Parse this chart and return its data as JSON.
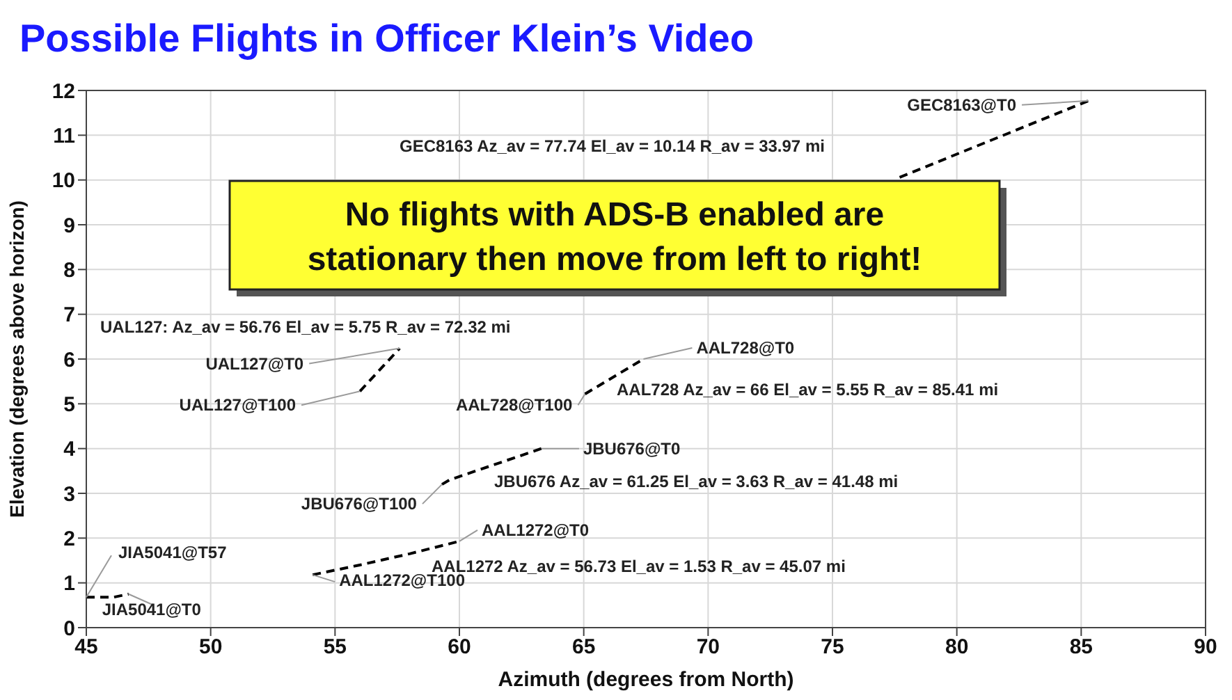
{
  "chart_data": {
    "type": "line",
    "title": "Possible Flights in Officer Klein’s Video",
    "xlabel": "Azimuth (degrees from North)",
    "ylabel": "Elevation (degrees above horizon)",
    "xlim": [
      45,
      90
    ],
    "xticks": [
      45,
      50,
      55,
      60,
      65,
      70,
      75,
      80,
      85,
      90
    ],
    "ylim": [
      0,
      12
    ],
    "yticks": [
      0,
      1,
      2,
      3,
      4,
      5,
      6,
      7,
      8,
      9,
      10,
      11,
      12
    ],
    "grid": true,
    "line_style": "dashed",
    "marker": "none",
    "series": [
      {
        "color": "#000000",
        "x": [
          45,
          46.1,
          46.7
        ],
        "values": [
          0.68,
          0.68,
          0.75
        ]
      },
      {
        "color": "#000000",
        "x": [
          54.1,
          56,
          58,
          60
        ],
        "values": [
          1.18,
          1.4,
          1.65,
          1.93
        ]
      },
      {
        "color": "#000000",
        "x": [
          59.3,
          59.6,
          63.3
        ],
        "values": [
          3.2,
          3.3,
          4.0
        ]
      },
      {
        "color": "#000000",
        "x": [
          65.05,
          67.4
        ],
        "values": [
          5.22,
          6.0
        ]
      },
      {
        "color": "#000000",
        "x": [
          56.0,
          57.6
        ],
        "values": [
          5.28,
          6.24
        ]
      },
      {
        "color": "#000000",
        "x": [
          77.7,
          85.3
        ],
        "values": [
          10.06,
          11.77
        ]
      }
    ],
    "annotations": [
      {
        "text": "JIA5041@T57",
        "x": 45,
        "y": 0.68
      },
      {
        "text": "JIA5041@T0",
        "x": 46.7,
        "y": 0.75
      },
      {
        "text": "AAL1272@T100",
        "x": 54.1,
        "y": 1.18
      },
      {
        "text": "AAL1272@T0",
        "x": 60,
        "y": 1.93
      },
      {
        "text": "JBU676@T100",
        "x": 59.3,
        "y": 3.2
      },
      {
        "text": "JBU676@T0",
        "x": 63.3,
        "y": 4.0
      },
      {
        "text": "AAL728@T100",
        "x": 65.05,
        "y": 5.22
      },
      {
        "text": "AAL728@T0",
        "x": 67.4,
        "y": 6.0
      },
      {
        "text": "UAL127@T100",
        "x": 56.0,
        "y": 5.28
      },
      {
        "text": "UAL127@T0",
        "x": 57.6,
        "y": 6.24
      },
      {
        "text": "GEC8163@T0",
        "x": 85.3,
        "y": 11.77
      },
      "UAL127: Az_av = 56.76 El_av = 5.75 R_av = 72.32 mi",
      "GEC8163 Az_av = 77.74 El_av = 10.14 R_av = 33.97 mi",
      "AAL728 Az_av = 66 El_av = 5.55 R_av = 85.41 mi",
      "JBU676 Az_av = 61.25 El_av = 3.63 R_av = 41.48 mi",
      "AAL1272 Az_av = 56.73 El_av = 1.53 R_av = 45.07 mi",
      "No flights with ADS-B enabled are stationary then move from left to right!"
    ]
  }
}
